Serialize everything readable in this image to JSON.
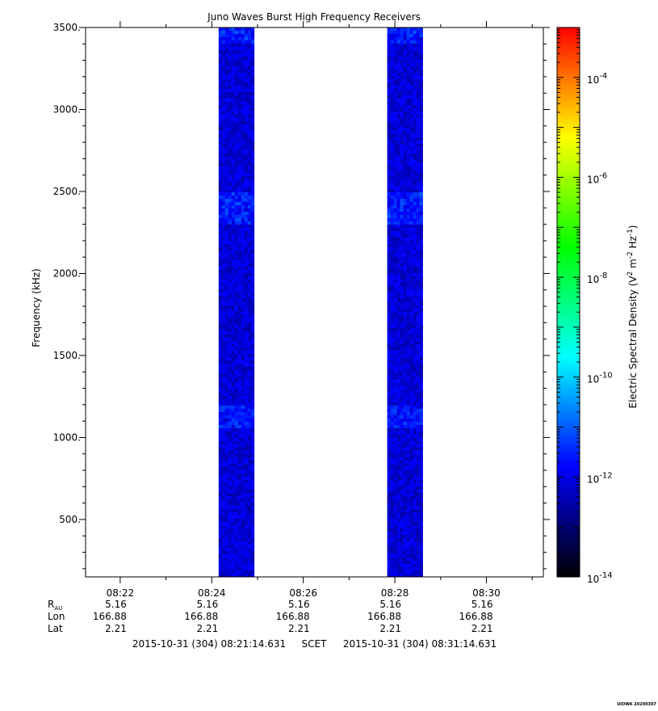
{
  "chart_data": {
    "type": "heatmap",
    "title": "Juno Waves Burst High Frequency Receivers",
    "ylabel": "Frequency (kHz)",
    "y_scale": "linear",
    "ylim": [
      150,
      3500
    ],
    "y_ticks": [
      {
        "value": 500,
        "label": "500."
      },
      {
        "value": 1000,
        "label": "1000."
      },
      {
        "value": 1500,
        "label": "1500."
      },
      {
        "value": 2000,
        "label": "2000."
      },
      {
        "value": 2500,
        "label": "2500."
      },
      {
        "value": 3000,
        "label": "3000."
      },
      {
        "value": 3500,
        "label": "3500."
      }
    ],
    "xlim": [
      "08:21:14.631",
      "08:31:14.631"
    ],
    "x_ticks": [
      {
        "value": "08:22",
        "label": "08:22"
      },
      {
        "value": "08:24",
        "label": "08:24"
      },
      {
        "value": "08:26",
        "label": "08:26"
      },
      {
        "value": "08:28",
        "label": "08:28"
      },
      {
        "value": "08:30",
        "label": "08:30"
      }
    ],
    "ephemeris": {
      "rows": [
        {
          "label": "R",
          "label_sub": "AU",
          "values": [
            "5.16",
            "5.16",
            "5.16",
            "5.16",
            "5.16"
          ]
        },
        {
          "label": "Lon",
          "values": [
            "166.88",
            "166.88",
            "166.88",
            "166.88",
            "166.88"
          ]
        },
        {
          "label": "Lat",
          "values": [
            "2.21",
            "2.21",
            "2.21",
            "2.21",
            "2.21"
          ]
        }
      ]
    },
    "time_range": {
      "start": "2015-10-31 (304) 08:21:14.631",
      "scet_label": "SCET",
      "end": "2015-10-31 (304) 08:31:14.631"
    },
    "colorbar": {
      "label_main": "Electric Spectral Density (V",
      "label_parts": [
        "2",
        " m",
        "-2",
        " Hz",
        "-1",
        ")"
      ],
      "scale": "log",
      "range": [
        1e-14,
        0.001
      ],
      "ticks": [
        {
          "value": 1e-14,
          "base": "10",
          "exp": "-14"
        },
        {
          "value": 1e-12,
          "base": "10",
          "exp": "-12"
        },
        {
          "value": 1e-10,
          "base": "10",
          "exp": "-10"
        },
        {
          "value": 1e-08,
          "base": "10",
          "exp": "-8"
        },
        {
          "value": 1e-06,
          "base": "10",
          "exp": "-6"
        },
        {
          "value": 0.0001,
          "base": "10",
          "exp": "-4"
        }
      ],
      "colors": [
        "#000000",
        "#00007f",
        "#0000ff",
        "#007fff",
        "#00ffff",
        "#00ff7f",
        "#00ff00",
        "#7fff00",
        "#ffff00",
        "#ff7f00",
        "#ff0000"
      ]
    },
    "bursts": [
      {
        "start": "08:24:09",
        "end": "08:24:53",
        "dominant_density": 1e-12,
        "peak_density": 3e-11,
        "enhanced_bands_khz": [
          [
            1050,
            1200
          ],
          [
            2300,
            2500
          ],
          [
            3400,
            3500
          ]
        ]
      },
      {
        "start": "08:27:50",
        "end": "08:28:35",
        "dominant_density": 1e-12,
        "peak_density": 3e-11,
        "enhanced_bands_khz": [
          [
            1050,
            1200
          ],
          [
            2300,
            2500
          ],
          [
            3400,
            3500
          ]
        ]
      }
    ],
    "footer": "UIOWA 20200307"
  }
}
